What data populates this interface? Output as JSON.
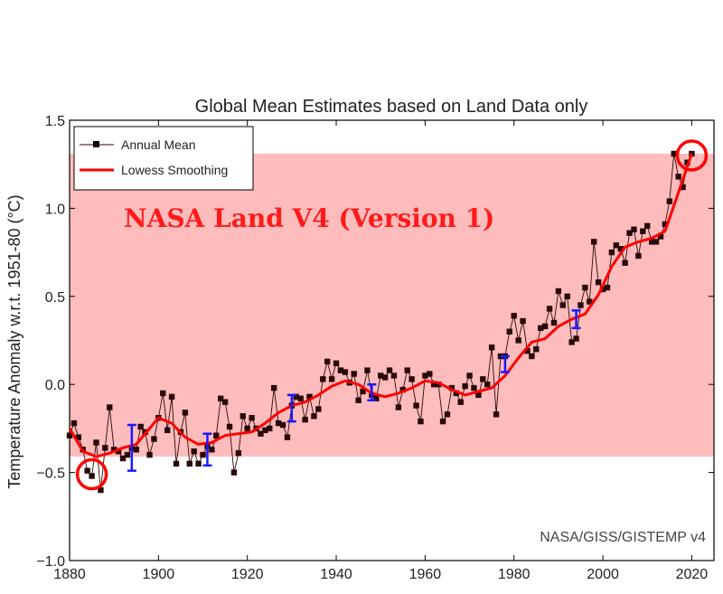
{
  "chart_data": {
    "type": "line",
    "title": "Global Mean Estimates based on Land Data only",
    "xlabel": "",
    "ylabel": "Temperature Anomaly w.r.t. 1951-80 (°C)",
    "xlim": [
      1880,
      2025
    ],
    "ylim": [
      -1.0,
      1.5
    ],
    "x_ticks": [
      1880,
      1900,
      1920,
      1940,
      1960,
      1980,
      2000,
      2020
    ],
    "y_ticks": [
      -1.0,
      -0.5,
      0.0,
      0.5,
      1.0,
      1.5
    ],
    "y_tick_labels": [
      "−1.0",
      "−0.5",
      "0.0",
      "0.5",
      "1.0",
      "1.5"
    ],
    "grid": false,
    "legend_position": "top-left",
    "annotation": "NASA Land V4 (Version 1)",
    "credit": "NASA/GISS/GISTEMP v4",
    "shaded_band": {
      "y_from": -0.41,
      "y_to": 1.31,
      "color": "#ffbcbc"
    },
    "colors": {
      "annual": "#2a0808",
      "lowess": "#ff0000",
      "error_bars": "#1a1aff",
      "circles": "#ff0000"
    },
    "series": [
      {
        "name": "Annual Mean",
        "marker": "square",
        "x": [
          1880,
          1881,
          1882,
          1883,
          1884,
          1885,
          1886,
          1887,
          1888,
          1889,
          1890,
          1891,
          1892,
          1893,
          1894,
          1895,
          1896,
          1897,
          1898,
          1899,
          1900,
          1901,
          1902,
          1903,
          1904,
          1905,
          1906,
          1907,
          1908,
          1909,
          1910,
          1911,
          1912,
          1913,
          1914,
          1915,
          1916,
          1917,
          1918,
          1919,
          1920,
          1921,
          1922,
          1923,
          1924,
          1925,
          1926,
          1927,
          1928,
          1929,
          1930,
          1931,
          1932,
          1933,
          1934,
          1935,
          1936,
          1937,
          1938,
          1939,
          1940,
          1941,
          1942,
          1943,
          1944,
          1945,
          1946,
          1947,
          1948,
          1949,
          1950,
          1951,
          1952,
          1953,
          1954,
          1955,
          1956,
          1957,
          1958,
          1959,
          1960,
          1961,
          1962,
          1963,
          1964,
          1965,
          1966,
          1967,
          1968,
          1969,
          1970,
          1971,
          1972,
          1973,
          1974,
          1975,
          1976,
          1977,
          1978,
          1979,
          1980,
          1981,
          1982,
          1983,
          1984,
          1985,
          1986,
          1987,
          1988,
          1989,
          1990,
          1991,
          1992,
          1993,
          1994,
          1995,
          1996,
          1997,
          1998,
          1999,
          2000,
          2001,
          2002,
          2003,
          2004,
          2005,
          2006,
          2007,
          2008,
          2009,
          2010,
          2011,
          2012,
          2013,
          2014,
          2015,
          2016,
          2017,
          2018,
          2019,
          2020
        ],
        "y": [
          -0.29,
          -0.22,
          -0.3,
          -0.37,
          -0.49,
          -0.52,
          -0.33,
          -0.6,
          -0.36,
          -0.13,
          -0.37,
          -0.38,
          -0.42,
          -0.4,
          -0.36,
          -0.37,
          -0.24,
          -0.27,
          -0.4,
          -0.31,
          -0.19,
          -0.05,
          -0.26,
          -0.07,
          -0.45,
          -0.27,
          -0.16,
          -0.45,
          -0.38,
          -0.45,
          -0.4,
          -0.35,
          -0.37,
          -0.29,
          -0.08,
          -0.1,
          -0.24,
          -0.5,
          -0.39,
          -0.18,
          -0.25,
          -0.19,
          -0.25,
          -0.28,
          -0.26,
          -0.25,
          -0.02,
          -0.22,
          -0.23,
          -0.3,
          -0.12,
          -0.07,
          -0.08,
          -0.2,
          -0.07,
          -0.18,
          -0.14,
          0.03,
          0.13,
          0.03,
          0.12,
          0.08,
          0.07,
          0.01,
          0.06,
          -0.09,
          -0.04,
          0.08,
          -0.06,
          -0.08,
          0.05,
          0.04,
          0.08,
          0.05,
          -0.13,
          -0.03,
          0.08,
          0.03,
          -0.12,
          -0.21,
          0.05,
          0.06,
          0.0,
          0.0,
          -0.21,
          -0.17,
          -0.02,
          -0.05,
          -0.1,
          -0.01,
          0.05,
          -0.02,
          -0.06,
          0.03,
          0.0,
          0.21,
          -0.17,
          0.16,
          0.16,
          0.3,
          0.39,
          0.25,
          0.36,
          0.19,
          0.16,
          0.2,
          0.32,
          0.33,
          0.43,
          0.35,
          0.53,
          0.45,
          0.5,
          0.24,
          0.26,
          0.45,
          0.55,
          0.47,
          0.81,
          0.58,
          0.54,
          0.55,
          0.75,
          0.79,
          0.77,
          0.69,
          0.86,
          0.88,
          0.73,
          0.87,
          0.9,
          0.81,
          0.81,
          0.84,
          0.91,
          1.04,
          1.31,
          1.18,
          1.12,
          1.26,
          1.31
        ]
      },
      {
        "name": "Lowess Smoothing",
        "x": [
          1880,
          1883,
          1886,
          1889,
          1892,
          1895,
          1898,
          1900,
          1903,
          1906,
          1909,
          1912,
          1915,
          1918,
          1921,
          1924,
          1927,
          1930,
          1933,
          1936,
          1939,
          1942,
          1945,
          1948,
          1951,
          1954,
          1957,
          1960,
          1963,
          1966,
          1969,
          1972,
          1975,
          1978,
          1981,
          1984,
          1987,
          1990,
          1993,
          1996,
          1999,
          2002,
          2005,
          2008,
          2011,
          2014,
          2017,
          2020
        ],
        "y": [
          -0.25,
          -0.38,
          -0.41,
          -0.39,
          -0.36,
          -0.34,
          -0.25,
          -0.19,
          -0.22,
          -0.3,
          -0.34,
          -0.33,
          -0.29,
          -0.28,
          -0.27,
          -0.22,
          -0.16,
          -0.12,
          -0.1,
          -0.06,
          -0.01,
          0.02,
          0.0,
          -0.05,
          -0.07,
          -0.05,
          -0.02,
          0.02,
          0.01,
          -0.03,
          -0.06,
          -0.04,
          -0.02,
          0.05,
          0.15,
          0.24,
          0.26,
          0.33,
          0.37,
          0.4,
          0.51,
          0.67,
          0.78,
          0.81,
          0.83,
          0.87,
          1.09,
          1.31
        ]
      }
    ],
    "error_bars": [
      {
        "x": 1894,
        "low": -0.49,
        "high": -0.23
      },
      {
        "x": 1911,
        "low": -0.46,
        "high": -0.28
      },
      {
        "x": 1930,
        "low": -0.21,
        "high": -0.06
      },
      {
        "x": 1948,
        "low": -0.09,
        "high": 0.0
      },
      {
        "x": 1978,
        "low": 0.07,
        "high": 0.16
      },
      {
        "x": 1994,
        "low": 0.32,
        "high": 0.42
      }
    ],
    "highlight_circles": [
      {
        "x": 1885,
        "y": -0.51
      },
      {
        "x": 2020,
        "y": 1.3
      }
    ]
  }
}
